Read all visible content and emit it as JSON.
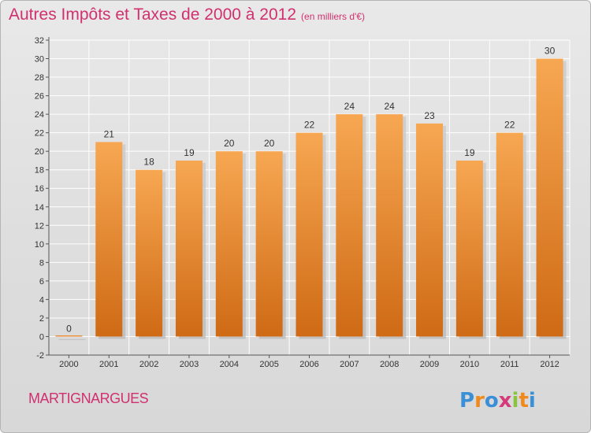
{
  "title": "Autres Impôts et Taxes de 2000 à 2012",
  "subtitle": "(en milliers d'€)",
  "commune": "MARTIGNARGUES",
  "logo_text": "Proxiti",
  "colors": {
    "title": "#d1306f",
    "bar_top": "#f7a752",
    "bar_bottom": "#cf6a15",
    "tick_text": "#333333"
  },
  "chart_data": {
    "type": "bar",
    "categories": [
      "2000",
      "2001",
      "2002",
      "2003",
      "2004",
      "2005",
      "2006",
      "2007",
      "2008",
      "2009",
      "2010",
      "2011",
      "2012"
    ],
    "values": [
      0,
      21,
      18,
      19,
      20,
      20,
      22,
      24,
      24,
      23,
      19,
      22,
      30
    ],
    "ylim": [
      -2,
      32
    ],
    "yticks": [
      -2,
      0,
      2,
      4,
      6,
      8,
      10,
      12,
      14,
      16,
      18,
      20,
      22,
      24,
      26,
      28,
      30,
      32
    ],
    "grid": true,
    "xlabel": "",
    "ylabel": ""
  }
}
